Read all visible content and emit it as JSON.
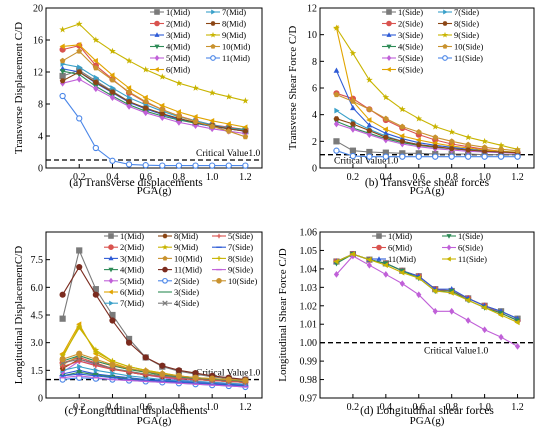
{
  "critical_label": "Critical Value1.0",
  "chart_data": [
    {
      "id": "a",
      "type": "line",
      "caption": "(a) Transverse displacements",
      "xlabel": "PGA(g)",
      "ylabel": "Transverse Displacement C/D",
      "xlim": [
        0.0,
        1.3
      ],
      "ylim": [
        0,
        20
      ],
      "xticks": [
        "0.2",
        "0.4",
        "0.6",
        "0.8",
        "1.0",
        "1.2"
      ],
      "yticks": [
        "0",
        "4",
        "8",
        "12",
        "16",
        "20"
      ],
      "critical_value": 1.0,
      "x": [
        0.1,
        0.2,
        0.3,
        0.4,
        0.5,
        0.6,
        0.7,
        0.8,
        0.9,
        1.0,
        1.1,
        1.2
      ],
      "series": [
        {
          "name": "1(Mid)",
          "color": "#7a7a7a",
          "marker": "square",
          "values": [
            11.5,
            12.2,
            10.9,
            9.6,
            8.3,
            7.4,
            6.7,
            6.1,
            5.6,
            5.2,
            4.9,
            4.6
          ]
        },
        {
          "name": "2(Mid)",
          "color": "#d9534f",
          "marker": "circle",
          "values": [
            14.8,
            15.3,
            12.8,
            11.1,
            9.4,
            8.2,
            7.3,
            6.5,
            5.9,
            5.4,
            5.1,
            4.8
          ]
        },
        {
          "name": "3(Mid)",
          "color": "#2e5bd6",
          "marker": "triangle",
          "values": [
            12.4,
            12.0,
            10.6,
            9.4,
            8.2,
            7.4,
            6.7,
            6.1,
            5.6,
            5.2,
            4.9,
            4.6
          ]
        },
        {
          "name": "4(Mid)",
          "color": "#2e8b57",
          "marker": "tri-down",
          "values": [
            12.1,
            11.7,
            10.2,
            9.0,
            7.9,
            7.1,
            6.5,
            6.0,
            5.6,
            5.3,
            5.0,
            4.8
          ]
        },
        {
          "name": "5(Mid)",
          "color": "#c060d8",
          "marker": "diamond",
          "values": [
            10.6,
            11.1,
            9.9,
            8.8,
            7.7,
            6.9,
            6.3,
            5.7,
            5.3,
            4.9,
            4.6,
            4.3
          ]
        },
        {
          "name": "6(Mid)",
          "color": "#e1a400",
          "marker": "tri-left",
          "values": [
            15.2,
            15.4,
            13.4,
            11.6,
            10.0,
            8.8,
            7.8,
            7.0,
            6.4,
            5.9,
            5.5,
            5.1
          ]
        },
        {
          "name": "7(Mid)",
          "color": "#3aa0c9",
          "marker": "tri-right",
          "values": [
            13.0,
            12.6,
            11.3,
            10.0,
            8.8,
            7.9,
            7.1,
            6.4,
            5.9,
            5.4,
            5.0,
            4.7
          ]
        },
        {
          "name": "8(Mid)",
          "color": "#8b4513",
          "marker": "hexagon",
          "values": [
            10.9,
            12.0,
            10.7,
            9.5,
            8.3,
            7.5,
            6.8,
            6.2,
            5.7,
            5.3,
            4.9,
            4.6
          ]
        },
        {
          "name": "9(Mid)",
          "color": "#c8b400",
          "marker": "star",
          "values": [
            17.3,
            18.0,
            16.0,
            14.6,
            13.4,
            12.3,
            11.4,
            10.6,
            10.0,
            9.4,
            8.9,
            8.4
          ]
        },
        {
          "name": "10(Mid)",
          "color": "#c9922e",
          "marker": "pentagon",
          "values": [
            13.4,
            14.6,
            12.5,
            11.0,
            9.5,
            8.3,
            7.3,
            6.5,
            5.8,
            5.2,
            4.6,
            3.9
          ]
        },
        {
          "name": "11(Mid)",
          "color": "#4a86e8",
          "marker": "circle-open",
          "values": [
            9.0,
            6.2,
            2.5,
            0.9,
            0.45,
            0.35,
            0.3,
            0.3,
            0.3,
            0.3,
            0.3,
            0.3
          ]
        }
      ]
    },
    {
      "id": "b",
      "type": "line",
      "caption": "(b) Transverse shear forces",
      "xlabel": "PGA(g)",
      "ylabel": "Transverse Shear Force C/D",
      "xlim": [
        0.0,
        1.3
      ],
      "ylim": [
        0,
        12
      ],
      "xticks": [
        "0.2",
        "0.4",
        "0.6",
        "0.8",
        "1.0",
        "1.2"
      ],
      "yticks": [
        "0",
        "2",
        "4",
        "6",
        "8",
        "10",
        "12"
      ],
      "critical_value": 1.0,
      "x": [
        0.1,
        0.2,
        0.3,
        0.4,
        0.5,
        0.6,
        0.7,
        0.8,
        0.9,
        1.0,
        1.1,
        1.2
      ],
      "series": [
        {
          "name": "1(Side)",
          "color": "#7a7a7a",
          "marker": "square",
          "values": [
            2.0,
            1.3,
            1.2,
            1.15,
            1.1,
            1.1,
            1.05,
            1.05,
            1.05,
            1.0,
            1.0,
            1.0
          ]
        },
        {
          "name": "2(Side)",
          "color": "#d9534f",
          "marker": "circle",
          "values": [
            5.6,
            5.2,
            4.4,
            3.6,
            3.0,
            2.5,
            2.1,
            1.8,
            1.6,
            1.4,
            1.25,
            1.15
          ]
        },
        {
          "name": "3(Side)",
          "color": "#2e5bd6",
          "marker": "triangle",
          "values": [
            7.3,
            4.5,
            3.2,
            2.6,
            2.2,
            1.9,
            1.7,
            1.55,
            1.4,
            1.3,
            1.2,
            1.15
          ]
        },
        {
          "name": "4(Side)",
          "color": "#2e8b57",
          "marker": "tri-down",
          "values": [
            3.5,
            3.0,
            2.6,
            2.2,
            1.9,
            1.7,
            1.55,
            1.45,
            1.35,
            1.25,
            1.2,
            1.15
          ]
        },
        {
          "name": "5(Side)",
          "color": "#c060d8",
          "marker": "diamond",
          "values": [
            3.3,
            2.9,
            2.5,
            2.1,
            1.8,
            1.6,
            1.45,
            1.35,
            1.25,
            1.2,
            1.15,
            1.1
          ]
        },
        {
          "name": "6(Side)",
          "color": "#e1a400",
          "marker": "tri-left",
          "values": [
            10.5,
            5.0,
            3.6,
            2.9,
            2.4,
            2.1,
            1.85,
            1.65,
            1.5,
            1.35,
            1.25,
            1.2
          ]
        },
        {
          "name": "7(Side)",
          "color": "#3aa0c9",
          "marker": "tri-right",
          "values": [
            4.3,
            3.5,
            2.9,
            2.4,
            2.0,
            1.75,
            1.6,
            1.45,
            1.35,
            1.25,
            1.2,
            1.15
          ]
        },
        {
          "name": "8(Side)",
          "color": "#8b4513",
          "marker": "hexagon",
          "values": [
            3.7,
            3.3,
            2.8,
            2.3,
            2.0,
            1.75,
            1.6,
            1.45,
            1.35,
            1.25,
            1.2,
            1.15
          ]
        },
        {
          "name": "9(Side)",
          "color": "#c8b400",
          "marker": "star",
          "values": [
            10.5,
            8.6,
            6.6,
            5.3,
            4.4,
            3.7,
            3.1,
            2.7,
            2.3,
            2.0,
            1.7,
            1.4
          ]
        },
        {
          "name": "10(Side)",
          "color": "#c9922e",
          "marker": "pentagon",
          "values": [
            5.5,
            5.0,
            4.4,
            3.7,
            3.1,
            2.7,
            2.3,
            2.0,
            1.75,
            1.55,
            1.4,
            1.3
          ]
        },
        {
          "name": "11(Side)",
          "color": "#4a86e8",
          "marker": "circle-open",
          "values": [
            1.3,
            0.9,
            0.85,
            0.85,
            0.85,
            0.85,
            0.85,
            0.85,
            0.85,
            0.85,
            0.85,
            0.85
          ]
        }
      ]
    },
    {
      "id": "c",
      "type": "line",
      "caption": "(c) Longitudinal displacements",
      "xlabel": "PGA(g)",
      "ylabel": "Longitudinal DisplacementC/D",
      "xlim": [
        0.0,
        1.3
      ],
      "ylim": [
        0,
        9
      ],
      "xticks": [
        "0.2",
        "0.4",
        "0.6",
        "0.8",
        "1.0",
        "1.2"
      ],
      "yticks": [
        "0",
        "1.5",
        "3.0",
        "4.5",
        "6.0",
        "7.5"
      ],
      "critical_value": 1.0,
      "x": [
        0.1,
        0.2,
        0.3,
        0.4,
        0.5,
        0.6,
        0.7,
        0.8,
        0.9,
        1.0,
        1.1,
        1.2
      ],
      "series": [
        {
          "name": "1(Mid)",
          "color": "#7a7a7a",
          "marker": "square",
          "values": [
            4.3,
            8.0,
            5.9,
            4.5,
            3.2,
            2.2,
            1.7,
            1.45,
            1.3,
            1.15,
            1.05,
            1.0
          ]
        },
        {
          "name": "2(Mid)",
          "color": "#d9534f",
          "marker": "circle",
          "values": [
            1.9,
            2.2,
            1.9,
            1.6,
            1.4,
            1.25,
            1.15,
            1.05,
            1.0,
            0.95,
            0.9,
            0.85
          ]
        },
        {
          "name": "3(Mid)",
          "color": "#2e5bd6",
          "marker": "triangle",
          "values": [
            1.3,
            1.5,
            1.3,
            1.2,
            1.1,
            1.0,
            0.95,
            0.9,
            0.85,
            0.8,
            0.75,
            0.7
          ]
        },
        {
          "name": "4(Mid)",
          "color": "#2e8b57",
          "marker": "tri-down",
          "values": [
            1.2,
            1.4,
            1.25,
            1.15,
            1.05,
            0.95,
            0.9,
            0.85,
            0.8,
            0.75,
            0.7,
            0.65
          ]
        },
        {
          "name": "5(Mid)",
          "color": "#c060d8",
          "marker": "diamond",
          "values": [
            1.4,
            2.0,
            1.8,
            1.6,
            1.4,
            1.25,
            1.1,
            1.0,
            0.9,
            0.85,
            0.8,
            0.75
          ]
        },
        {
          "name": "6(Mid)",
          "color": "#e1a400",
          "marker": "tri-left",
          "values": [
            2.4,
            4.0,
            2.4,
            1.9,
            1.6,
            1.4,
            1.25,
            1.1,
            1.0,
            0.95,
            0.9,
            0.85
          ]
        },
        {
          "name": "7(Mid)",
          "color": "#3aa0c9",
          "marker": "tri-right",
          "values": [
            1.5,
            1.7,
            1.5,
            1.35,
            1.2,
            1.1,
            1.0,
            0.95,
            0.9,
            0.85,
            0.8,
            0.75
          ]
        },
        {
          "name": "8(Mid)",
          "color": "#8b4513",
          "marker": "hexagon",
          "values": [
            1.6,
            2.1,
            1.85,
            1.6,
            1.4,
            1.25,
            1.15,
            1.05,
            1.0,
            0.95,
            0.9,
            0.85
          ]
        },
        {
          "name": "9(Mid)",
          "color": "#c8b400",
          "marker": "star",
          "values": [
            2.3,
            3.8,
            2.6,
            2.0,
            1.7,
            1.5,
            1.35,
            1.2,
            1.1,
            1.05,
            1.0,
            0.95
          ]
        },
        {
          "name": "10(Mid)",
          "color": "#c9922e",
          "marker": "pentagon",
          "values": [
            1.8,
            2.3,
            2.0,
            1.75,
            1.55,
            1.4,
            1.25,
            1.15,
            1.1,
            1.0,
            0.95,
            0.9
          ]
        },
        {
          "name": "11(Mid)",
          "color": "#7b2b1e",
          "marker": "circle",
          "values": [
            5.6,
            7.1,
            5.6,
            4.2,
            3.0,
            2.2,
            1.75,
            1.5,
            1.35,
            1.2,
            1.1,
            1.0
          ]
        },
        {
          "name": "2(Side)",
          "color": "#4a86e8",
          "marker": "circle-open",
          "values": [
            1.0,
            1.1,
            1.05,
            1.0,
            0.95,
            0.9,
            0.85,
            0.8,
            0.75,
            0.7,
            0.65,
            0.6
          ]
        },
        {
          "name": "3(Side)",
          "color": "#2e8b57",
          "marker": "none",
          "values": [
            2.0,
            2.3,
            2.0,
            1.75,
            1.55,
            1.4,
            1.25,
            1.15,
            1.05,
            1.0,
            0.95,
            0.9
          ]
        },
        {
          "name": "4(Side)",
          "color": "#7a7a7a",
          "marker": "x",
          "values": [
            1.9,
            2.1,
            1.85,
            1.6,
            1.45,
            1.3,
            1.2,
            1.1,
            1.0,
            0.95,
            0.9,
            0.85
          ]
        },
        {
          "name": "5(Side)",
          "color": "#d9534f",
          "marker": "plus",
          "values": [
            1.7,
            2.0,
            1.75,
            1.55,
            1.4,
            1.25,
            1.15,
            1.05,
            1.0,
            0.95,
            0.9,
            0.85
          ]
        },
        {
          "name": "7(Side)",
          "color": "#2e5bd6",
          "marker": "dash",
          "values": [
            1.2,
            1.3,
            1.2,
            1.1,
            1.0,
            0.95,
            0.9,
            0.85,
            0.8,
            0.75,
            0.7,
            0.65
          ]
        },
        {
          "name": "8(Side)",
          "color": "#c8b400",
          "marker": "plus",
          "values": [
            2.2,
            3.9,
            2.5,
            2.0,
            1.7,
            1.5,
            1.35,
            1.2,
            1.1,
            1.05,
            1.0,
            0.95
          ]
        },
        {
          "name": "9(Side)",
          "color": "#c060d8",
          "marker": "dash",
          "values": [
            1.1,
            1.2,
            1.1,
            1.0,
            0.95,
            0.9,
            0.85,
            0.8,
            0.75,
            0.7,
            0.65,
            0.6
          ]
        },
        {
          "name": "10(Side)",
          "color": "#c9922e",
          "marker": "circle",
          "values": [
            2.1,
            2.4,
            2.1,
            1.8,
            1.6,
            1.45,
            1.3,
            1.2,
            1.1,
            1.05,
            1.0,
            0.95
          ]
        }
      ]
    },
    {
      "id": "d",
      "type": "line",
      "caption": "(d) Longitudinal shear forces",
      "xlabel": "PGA(g)",
      "ylabel": "Longitudinal Shear Force C/D",
      "xlim": [
        0.0,
        1.3
      ],
      "ylim": [
        0.97,
        1.06
      ],
      "xticks": [
        "0.2",
        "0.4",
        "0.6",
        "0.8",
        "1.0",
        "1.2"
      ],
      "yticks": [
        "0.97",
        "0.98",
        "0.99",
        "1.00",
        "1.01",
        "1.02",
        "1.03",
        "1.04",
        "1.05",
        "1.06"
      ],
      "critical_value": 1.0,
      "x": [
        0.1,
        0.2,
        0.3,
        0.4,
        0.5,
        0.6,
        0.7,
        0.8,
        0.9,
        1.0,
        1.1,
        1.2
      ],
      "series": [
        {
          "name": "1(Mid)",
          "color": "#7a7a7a",
          "marker": "square",
          "values": [
            1.044,
            1.048,
            1.045,
            1.043,
            1.039,
            1.036,
            1.029,
            1.028,
            1.024,
            1.02,
            1.017,
            1.013
          ]
        },
        {
          "name": "6(Mid)",
          "color": "#d9534f",
          "marker": "circle",
          "values": [
            1.044,
            1.048,
            1.045,
            1.043,
            1.039,
            1.036,
            1.029,
            1.028,
            1.024,
            1.02,
            1.016,
            1.012
          ]
        },
        {
          "name": "11(Mid)",
          "color": "#2e5bd6",
          "marker": "triangle",
          "values": [
            1.044,
            1.048,
            1.045,
            1.043,
            1.039,
            1.036,
            1.029,
            1.029,
            1.024,
            1.02,
            1.017,
            1.013
          ]
        },
        {
          "name": "1(Side)",
          "color": "#2e8b57",
          "marker": "tri-down",
          "values": [
            1.043,
            1.048,
            1.045,
            1.043,
            1.039,
            1.035,
            1.028,
            1.028,
            1.023,
            1.019,
            1.016,
            1.012
          ]
        },
        {
          "name": "6(Side)",
          "color": "#c060d8",
          "marker": "diamond",
          "values": [
            1.037,
            1.047,
            1.042,
            1.037,
            1.032,
            1.026,
            1.017,
            1.017,
            1.012,
            1.007,
            1.003,
            0.998
          ]
        },
        {
          "name": "11(Side)",
          "color": "#c8b400",
          "marker": "tri-left",
          "values": [
            1.044,
            1.048,
            1.045,
            1.042,
            1.038,
            1.035,
            1.028,
            1.027,
            1.023,
            1.019,
            1.015,
            1.011
          ]
        }
      ]
    }
  ]
}
